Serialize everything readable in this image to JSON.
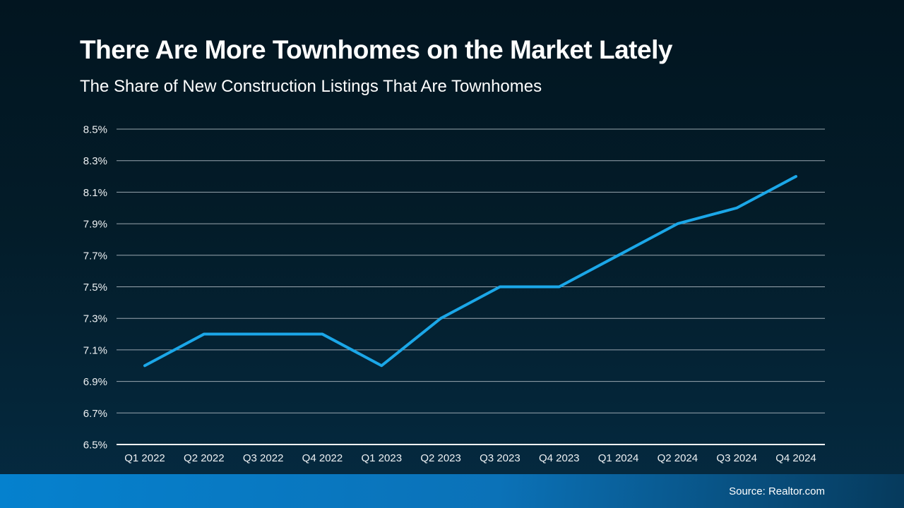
{
  "header": {
    "title": "There Are More Townhomes on the Market Lately",
    "subtitle": "The Share of New Construction Listings That Are Townhomes"
  },
  "footer": {
    "source": "Source: Realtor.com"
  },
  "colors": {
    "background_top": "#021520",
    "background_bottom": "#052B42",
    "line": "#1BA7E8",
    "gridline": "#9AA6AF",
    "axis_line": "#FFFFFF",
    "label_text": "#EEF1F3",
    "footer_left": "#0581CE",
    "footer_right": "#063A5C"
  },
  "chart_data": {
    "type": "line",
    "title": "There Are More Townhomes on the Market Lately",
    "subtitle": "The Share of New Construction Listings That Are Townhomes",
    "categories": [
      "Q1 2022",
      "Q2 2022",
      "Q3 2022",
      "Q4 2022",
      "Q1 2023",
      "Q2 2023",
      "Q3 2023",
      "Q4 2023",
      "Q1 2024",
      "Q2 2024",
      "Q3 2024",
      "Q4 2024"
    ],
    "series": [
      {
        "name": "Share of new construction listings that are townhomes",
        "values": [
          7.0,
          7.2,
          7.2,
          7.2,
          7.0,
          7.3,
          7.5,
          7.5,
          7.7,
          7.9,
          8.0,
          8.2
        ]
      }
    ],
    "unit": "%",
    "ylim": [
      6.5,
      8.5
    ],
    "yticks": [
      "6.5%",
      "6.7%",
      "6.9%",
      "7.1%",
      "7.3%",
      "7.5%",
      "7.7%",
      "7.9%",
      "8.1%",
      "8.3%",
      "8.5%"
    ],
    "xlabel": "",
    "ylabel": "",
    "grid": true,
    "legend": "none"
  }
}
